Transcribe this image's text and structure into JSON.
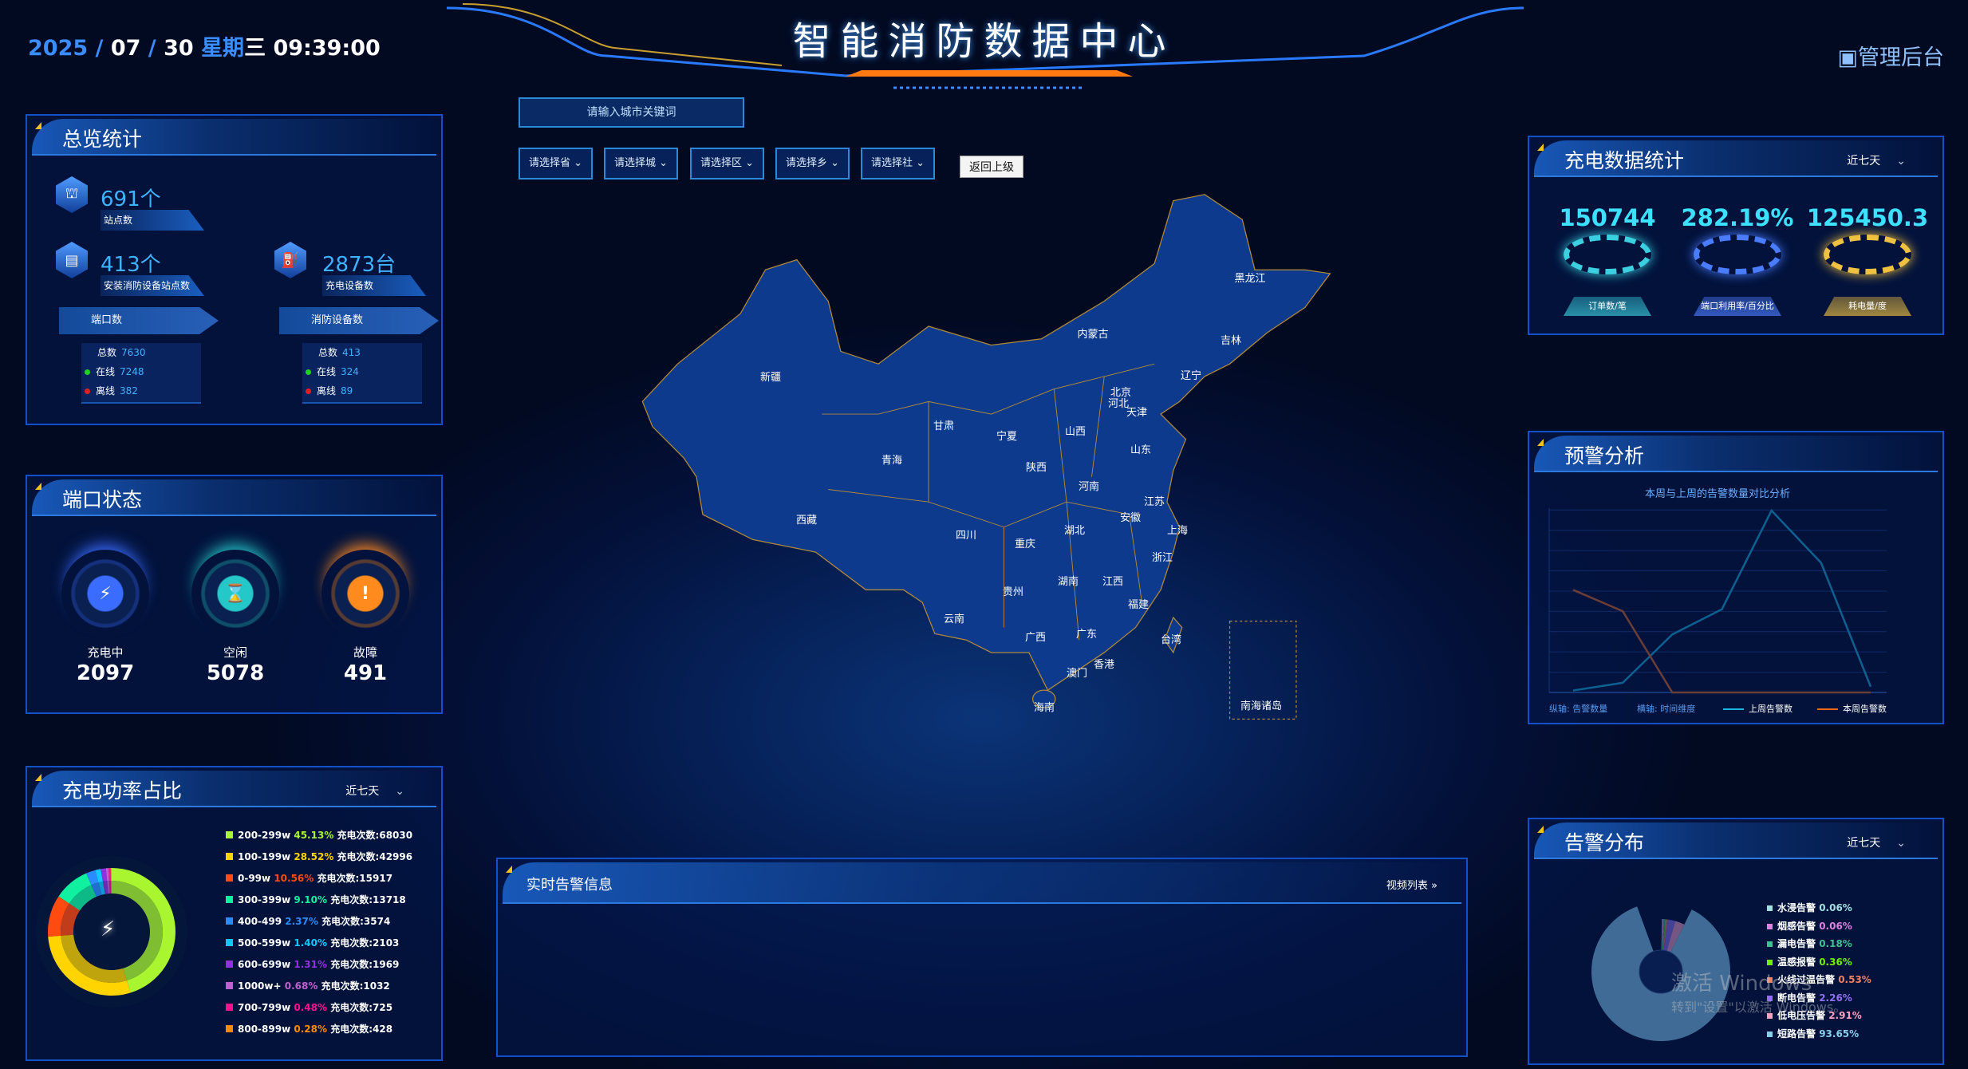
{
  "header": {
    "date": {
      "year": "2025",
      "month": "07",
      "day": "30",
      "weekday_label": "星期",
      "weekday": "三",
      "time": "09:39:00"
    },
    "title": "智能消防数据中心",
    "admin_label": "管理后台",
    "admin_icon": "monitor-icon"
  },
  "filters": {
    "search_placeholder": "请输入城市关键词",
    "selects": [
      "请选择省",
      "请选择城",
      "请选择区",
      "请选择乡",
      "请选择社"
    ],
    "back_label": "返回上级"
  },
  "overview": {
    "title": "总览统计",
    "sites": {
      "value": "691个",
      "label": "站点数"
    },
    "installed": {
      "value": "413个",
      "label": "安装消防设备站点数"
    },
    "chargers": {
      "value": "2873台",
      "label": "充电设备数"
    },
    "ports": {
      "label": "端口数",
      "total_label": "总数",
      "total": "7630",
      "online_label": "在线",
      "online": "7248",
      "offline_label": "离线",
      "offline": "382"
    },
    "devices": {
      "label": "消防设备数",
      "total_label": "总数",
      "total": "413",
      "online_label": "在线",
      "online": "324",
      "offline_label": "离线",
      "offline": "89"
    }
  },
  "port_status": {
    "title": "端口状态",
    "items": [
      {
        "label": "充电中",
        "value": "2097",
        "icon": "lightning-icon",
        "color": "#3a6cff"
      },
      {
        "label": "空闲",
        "value": "5078",
        "icon": "hourglass-icon",
        "color": "#25c8c8"
      },
      {
        "label": "故障",
        "value": "491",
        "icon": "exclamation-icon",
        "color": "#ff8a1e"
      }
    ]
  },
  "charge_stats": {
    "title": "充电数据统计",
    "range": "近七天",
    "items": [
      {
        "value": "150744",
        "label": "订单数/笔",
        "color": "#3ad0e0"
      },
      {
        "value": "282.19%",
        "label": "端口利用率/百分比",
        "color": "#4a7cff"
      },
      {
        "value": "125450.3",
        "label": "耗电量/度",
        "color": "#f0c040"
      }
    ]
  },
  "warning": {
    "title": "预警分析"
  },
  "alarm_dist": {
    "title": "告警分布",
    "range": "近七天"
  },
  "power": {
    "title": "充电功率占比",
    "range": "近七天",
    "count_label": "充电次数:"
  },
  "realtime": {
    "title": "实时告警信息",
    "link": "视频列表 »"
  },
  "map": {
    "provinces": [
      "新疆",
      "西藏",
      "青海",
      "甘肃",
      "内蒙古",
      "黑龙江",
      "吉林",
      "辽宁",
      "北京",
      "河北",
      "天津",
      "宁夏",
      "山西",
      "山东",
      "陕西",
      "河南",
      "江苏",
      "安徽",
      "上海",
      "湖北",
      "四川",
      "重庆",
      "浙江",
      "湖南",
      "江西",
      "贵州",
      "福建",
      "云南",
      "广西",
      "广东",
      "台湾",
      "香港",
      "澳门",
      "海南"
    ],
    "inset_label": "南海诸岛",
    "fill": "#0d3a8c",
    "border": "#b08a3a"
  },
  "watermark": {
    "line1": "激活 Windows",
    "line2": "转到\"设置\"以激活 Windows。"
  },
  "chart_data": [
    {
      "type": "pie",
      "variant": "donut",
      "title": "",
      "categories": [
        "200-299w",
        "100-199w",
        "0-99w",
        "300-399w",
        "400-499",
        "500-599w",
        "600-699w",
        "1000w+",
        "700-799w",
        "800-899w"
      ],
      "percent_labels": [
        "45.13%",
        "28.52%",
        "10.56%",
        "9.10%",
        "2.37%",
        "1.40%",
        "1.31%",
        "0.68%",
        "0.48%",
        "0.28%"
      ],
      "values": [
        68030,
        42996,
        15917,
        13718,
        3574,
        2103,
        1969,
        1032,
        725,
        428
      ],
      "colors": [
        "#a8f530",
        "#ffd400",
        "#ff4a10",
        "#10f0a0",
        "#2a8cff",
        "#10c8ff",
        "#9030e0",
        "#c060d0",
        "#ff1090",
        "#ff8a00"
      ]
    },
    {
      "type": "line",
      "title": "本周与上周的告警数量对比分析",
      "xlabel": "横轴: 时间维度",
      "ylabel": "纵轴: 告警数量",
      "grid": true,
      "legend": "bottom-right",
      "x": [
        1,
        2,
        3,
        4,
        5,
        6,
        7
      ],
      "series": [
        {
          "name": "上周告警数",
          "color": "#1ab8e0",
          "values": [
            0.1,
            0.5,
            3.0,
            4.3,
            9.4,
            6.7,
            0.3
          ]
        },
        {
          "name": "本周告警数",
          "color": "#e86a1a",
          "values": [
            5.3,
            4.2,
            0,
            0,
            0,
            0,
            0
          ]
        }
      ],
      "ylim": [
        0,
        10
      ]
    },
    {
      "type": "pie",
      "variant": "rose",
      "title": "",
      "categories": [
        "水浸告警",
        "烟感告警",
        "漏电告警",
        "温感报警",
        "火线过温告警",
        "断电告警",
        "低电压告警",
        "短路告警"
      ],
      "percent_labels": [
        "0.06%",
        "0.06%",
        "0.18%",
        "0.36%",
        "0.53%",
        "2.26%",
        "2.91%",
        "93.65%"
      ],
      "values": [
        0.06,
        0.06,
        0.18,
        0.36,
        0.53,
        2.26,
        2.91,
        93.65
      ],
      "colors": [
        "#a0e0e0",
        "#e080e0",
        "#40c090",
        "#70f000",
        "#f08060",
        "#9070f0",
        "#ffa0c0",
        "#87ceeb"
      ]
    }
  ]
}
